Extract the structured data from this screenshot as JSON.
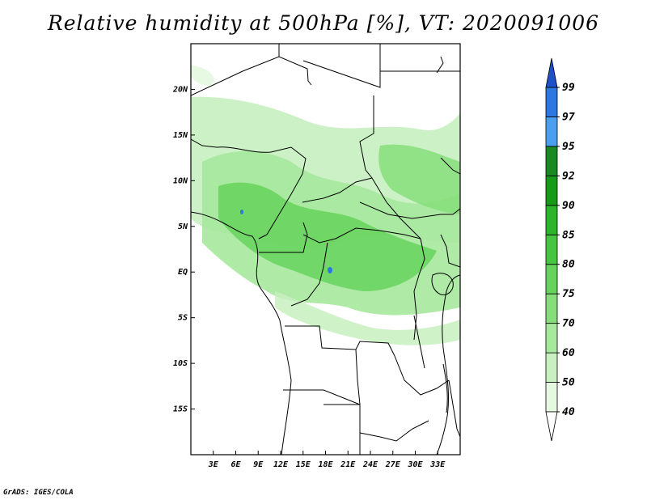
{
  "title": "Relative humidity at 500hPa [%], VT: 2020091006",
  "credit": "GrADS: IGES/COLA",
  "map": {
    "lon_range": [
      0,
      36
    ],
    "lat_range": [
      -20,
      25
    ],
    "lon_ticks": [
      {
        "value": 3,
        "label": "3E"
      },
      {
        "value": 6,
        "label": "6E"
      },
      {
        "value": 9,
        "label": "9E"
      },
      {
        "value": 12,
        "label": "12E"
      },
      {
        "value": 15,
        "label": "15E"
      },
      {
        "value": 18,
        "label": "18E"
      },
      {
        "value": 21,
        "label": "21E"
      },
      {
        "value": 24,
        "label": "24E"
      },
      {
        "value": 27,
        "label": "27E"
      },
      {
        "value": 30,
        "label": "30E"
      },
      {
        "value": 33,
        "label": "33E"
      }
    ],
    "lat_ticks": [
      {
        "value": 20,
        "label": "20N"
      },
      {
        "value": 15,
        "label": "15N"
      },
      {
        "value": 10,
        "label": "10N"
      },
      {
        "value": 5,
        "label": "5N"
      },
      {
        "value": 0,
        "label": "EQ"
      },
      {
        "value": -5,
        "label": "5S"
      },
      {
        "value": -10,
        "label": "10S"
      },
      {
        "value": -15,
        "label": "15S"
      }
    ]
  },
  "colorbar": {
    "levels": [
      "40",
      "50",
      "60",
      "70",
      "75",
      "80",
      "85",
      "90",
      "92",
      "95",
      "97",
      "99"
    ],
    "colors": [
      "#ffffff",
      "#e5f8e0",
      "#c8f0c0",
      "#a6e89c",
      "#86de7a",
      "#66d35d",
      "#46c640",
      "#2cb42a",
      "#179a17",
      "#1a8a20",
      "#4aa0ee",
      "#2c78e0",
      "#1e50c8"
    ]
  }
}
